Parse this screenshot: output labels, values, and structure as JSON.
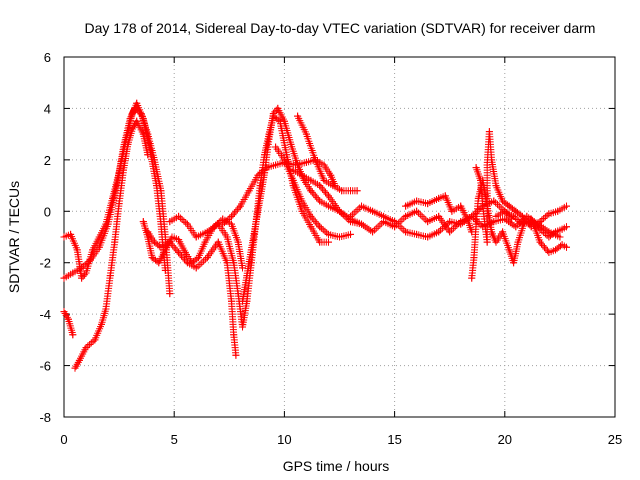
{
  "chart_data": {
    "type": "scatter",
    "title": "Day 178 of 2014, Sidereal Day-to-day VTEC variation (SDTVAR) for receiver darm",
    "xlabel": "GPS time / hours",
    "ylabel": "SDTVAR / TECUs",
    "xlim": [
      0,
      25
    ],
    "ylim": [
      -8,
      6
    ],
    "xticks": [
      0,
      5,
      10,
      15,
      20,
      25
    ],
    "yticks": [
      -8,
      -6,
      -4,
      -2,
      0,
      2,
      4,
      6
    ],
    "xtick_labels": [
      "0",
      "5",
      "10",
      "15",
      "20",
      "25"
    ],
    "ytick_labels": [
      "-8",
      "-6",
      "-4",
      "-2",
      "0",
      "2",
      "4",
      "6"
    ],
    "grid": true,
    "marker": "+",
    "series_color": "#ff0000",
    "series": [
      {
        "name": "track-1",
        "points": [
          [
            0,
            -1.0
          ],
          [
            0.3,
            -0.9
          ],
          [
            0.6,
            -1.5
          ],
          [
            0.8,
            -2.6
          ],
          [
            1.0,
            -2.4
          ],
          [
            1.3,
            -1.5
          ],
          [
            1.6,
            -1.0
          ],
          [
            1.9,
            -0.5
          ],
          [
            2.2,
            0.5
          ],
          [
            2.5,
            1.5
          ],
          [
            2.8,
            2.7
          ],
          [
            3.1,
            3.8
          ],
          [
            3.3,
            4.2
          ],
          [
            3.6,
            3.6
          ],
          [
            3.9,
            2.4
          ],
          [
            4.2,
            1.0
          ],
          [
            4.4,
            -0.5
          ],
          [
            4.5,
            -1.5
          ],
          [
            4.6,
            -2.3
          ]
        ]
      },
      {
        "name": "track-2",
        "points": [
          [
            0,
            -2.6
          ],
          [
            0.4,
            -2.4
          ],
          [
            0.8,
            -2.2
          ],
          [
            1.2,
            -1.9
          ],
          [
            1.6,
            -1.4
          ],
          [
            2.0,
            -0.5
          ],
          [
            2.4,
            1.0
          ],
          [
            2.7,
            2.5
          ],
          [
            3.0,
            3.6
          ],
          [
            3.2,
            4.0
          ],
          [
            3.5,
            3.8
          ],
          [
            3.8,
            3.0
          ],
          [
            4.1,
            2.0
          ],
          [
            4.4,
            0.8
          ],
          [
            4.6,
            -1.0
          ],
          [
            4.8,
            -3.2
          ]
        ]
      },
      {
        "name": "track-3",
        "points": [
          [
            0,
            -3.9
          ],
          [
            0.2,
            -4.2
          ],
          [
            0.4,
            -4.8
          ]
        ]
      },
      {
        "name": "track-4",
        "points": [
          [
            0.5,
            -6.1
          ],
          [
            0.7,
            -5.8
          ],
          [
            1.0,
            -5.3
          ],
          [
            1.4,
            -5.0
          ],
          [
            1.7,
            -4.4
          ],
          [
            1.9,
            -3.8
          ],
          [
            2.1,
            -2.5
          ],
          [
            2.3,
            -1.2
          ],
          [
            2.5,
            0.3
          ],
          [
            2.7,
            1.6
          ],
          [
            2.9,
            2.6
          ],
          [
            3.1,
            3.2
          ],
          [
            3.3,
            3.5
          ],
          [
            3.6,
            3.0
          ],
          [
            3.8,
            2.2
          ]
        ]
      },
      {
        "name": "track-5",
        "points": [
          [
            3.6,
            -0.4
          ],
          [
            3.8,
            -1.0
          ],
          [
            4.0,
            -1.8
          ],
          [
            4.3,
            -2.0
          ],
          [
            4.6,
            -1.5
          ],
          [
            4.9,
            -1.0
          ],
          [
            5.2,
            -1.1
          ],
          [
            5.5,
            -1.6
          ],
          [
            5.8,
            -2.0
          ],
          [
            6.1,
            -1.8
          ],
          [
            6.4,
            -1.2
          ],
          [
            6.8,
            -0.6
          ],
          [
            7.2,
            -0.3
          ],
          [
            7.6,
            -0.5
          ],
          [
            7.9,
            -1.2
          ],
          [
            8.1,
            -2.2
          ]
        ]
      },
      {
        "name": "track-6",
        "points": [
          [
            3.8,
            -0.8
          ],
          [
            4.1,
            -1.2
          ],
          [
            4.4,
            -1.4
          ],
          [
            4.8,
            -1.2
          ],
          [
            5.2,
            -1.6
          ],
          [
            5.6,
            -2.0
          ],
          [
            6.0,
            -2.2
          ],
          [
            6.5,
            -1.8
          ],
          [
            7.0,
            -1.2
          ],
          [
            7.4,
            -2.0
          ],
          [
            7.6,
            -3.5
          ],
          [
            7.7,
            -4.8
          ],
          [
            7.8,
            -5.6
          ]
        ]
      },
      {
        "name": "track-7",
        "points": [
          [
            4.8,
            -0.4
          ],
          [
            5.2,
            -0.2
          ],
          [
            5.6,
            -0.5
          ],
          [
            6.0,
            -1.0
          ],
          [
            6.5,
            -0.8
          ],
          [
            7.0,
            -0.5
          ],
          [
            7.4,
            -1.0
          ],
          [
            7.7,
            -2.0
          ],
          [
            7.9,
            -3.2
          ],
          [
            8.1,
            -4.5
          ],
          [
            8.3,
            -3.5
          ],
          [
            8.5,
            -2.0
          ],
          [
            8.7,
            -0.5
          ],
          [
            8.9,
            1.0
          ],
          [
            9.1,
            2.2
          ],
          [
            9.3,
            3.0
          ],
          [
            9.5,
            3.7
          ],
          [
            9.8,
            3.5
          ],
          [
            10.1,
            2.2
          ],
          [
            10.4,
            1.0
          ],
          [
            10.8,
            0
          ],
          [
            11.2,
            -0.6
          ],
          [
            11.6,
            -1.2
          ],
          [
            12.0,
            -1.2
          ]
        ]
      },
      {
        "name": "track-8",
        "points": [
          [
            7.2,
            -0.5
          ],
          [
            7.6,
            -0.2
          ],
          [
            8.0,
            0.2
          ],
          [
            8.4,
            0.8
          ],
          [
            8.8,
            1.4
          ],
          [
            9.2,
            1.7
          ],
          [
            9.6,
            1.8
          ],
          [
            10.0,
            1.9
          ],
          [
            10.5,
            1.8
          ],
          [
            11.0,
            1.9
          ],
          [
            11.4,
            2.0
          ],
          [
            11.8,
            1.8
          ],
          [
            12.1,
            1.4
          ],
          [
            12.3,
            1.0
          ]
        ]
      },
      {
        "name": "track-9",
        "points": [
          [
            8.1,
            -3.5
          ],
          [
            8.3,
            -2.5
          ],
          [
            8.5,
            -1.5
          ],
          [
            8.7,
            -0.5
          ],
          [
            8.9,
            0.5
          ],
          [
            9.1,
            1.5
          ],
          [
            9.3,
            2.8
          ],
          [
            9.5,
            3.8
          ],
          [
            9.7,
            4.0
          ],
          [
            10.0,
            3.5
          ],
          [
            10.3,
            2.6
          ],
          [
            10.6,
            1.8
          ],
          [
            10.9,
            1.2
          ],
          [
            11.2,
            0.8
          ],
          [
            11.6,
            0.4
          ],
          [
            12.0,
            0.2
          ],
          [
            12.5,
            0
          ],
          [
            13.0,
            -0.4
          ],
          [
            13.5,
            -0.5
          ]
        ]
      },
      {
        "name": "track-10",
        "points": [
          [
            9.6,
            2.5
          ],
          [
            10.0,
            2.0
          ],
          [
            10.4,
            1.2
          ],
          [
            10.8,
            0.4
          ],
          [
            11.2,
            -0.2
          ],
          [
            11.6,
            -0.6
          ],
          [
            12.0,
            -0.9
          ],
          [
            12.5,
            -1.0
          ],
          [
            13.0,
            -0.9
          ]
        ]
      },
      {
        "name": "track-11",
        "points": [
          [
            10.4,
            1.6
          ],
          [
            10.8,
            1.4
          ],
          [
            11.2,
            1.2
          ],
          [
            11.6,
            1.0
          ],
          [
            12.0,
            0.6
          ],
          [
            12.5,
            0
          ],
          [
            13.0,
            -0.3
          ],
          [
            13.5,
            -0.5
          ],
          [
            14.0,
            -0.8
          ],
          [
            14.5,
            -0.4
          ],
          [
            15.0,
            -0.6
          ],
          [
            15.5,
            -0.2
          ],
          [
            16.0,
            0
          ],
          [
            16.5,
            -0.4
          ],
          [
            17.0,
            -0.2
          ],
          [
            17.5,
            -0.8
          ],
          [
            18.0,
            -0.4
          ],
          [
            18.5,
            -0.2
          ],
          [
            19.0,
            -0.6
          ],
          [
            19.5,
            -0.4
          ],
          [
            20.0,
            -0.3
          ],
          [
            20.5,
            -0.6
          ],
          [
            21.0,
            -0.2
          ],
          [
            21.5,
            -0.5
          ],
          [
            22.0,
            -0.8
          ],
          [
            22.5,
            -1.0
          ]
        ]
      },
      {
        "name": "track-12",
        "points": [
          [
            10.6,
            3.7
          ],
          [
            11.0,
            3.0
          ],
          [
            11.4,
            2.0
          ],
          [
            11.8,
            1.2
          ],
          [
            12.2,
            1.0
          ],
          [
            12.6,
            0.8
          ],
          [
            13.0,
            0.8
          ],
          [
            13.3,
            0.8
          ]
        ]
      },
      {
        "name": "track-13",
        "points": [
          [
            13.0,
            -0.2
          ],
          [
            13.5,
            0.2
          ],
          [
            14.0,
            0
          ],
          [
            14.5,
            -0.2
          ],
          [
            15.0,
            -0.4
          ],
          [
            15.5,
            -0.8
          ],
          [
            16.0,
            -0.9
          ],
          [
            16.5,
            -1.0
          ],
          [
            17.0,
            -0.8
          ],
          [
            17.5,
            -0.4
          ],
          [
            18.0,
            -0.5
          ],
          [
            18.5,
            -0.2
          ],
          [
            19.0,
            0.2
          ],
          [
            19.5,
            0.4
          ],
          [
            20.0,
            0
          ],
          [
            20.3,
            -0.3
          ]
        ]
      },
      {
        "name": "track-14",
        "points": [
          [
            15.5,
            0.2
          ],
          [
            16.0,
            0.4
          ],
          [
            16.5,
            0.3
          ],
          [
            17.0,
            0.5
          ],
          [
            17.3,
            0.6
          ],
          [
            17.6,
            0
          ],
          [
            18.0,
            0.2
          ],
          [
            18.3,
            -0.3
          ],
          [
            18.5,
            -0.8
          ]
        ]
      },
      {
        "name": "track-15",
        "points": [
          [
            18.5,
            -2.6
          ],
          [
            18.6,
            -1.8
          ],
          [
            18.7,
            -0.5
          ],
          [
            18.8,
            0.5
          ],
          [
            19.0,
            1.2
          ],
          [
            19.2,
            0.2
          ],
          [
            19.4,
            -0.8
          ],
          [
            19.6,
            -1.2
          ],
          [
            19.9,
            -0.8
          ],
          [
            20.2,
            -1.5
          ],
          [
            20.4,
            -2.0
          ],
          [
            20.6,
            -1.2
          ],
          [
            20.9,
            -0.4
          ],
          [
            21.3,
            -0.5
          ],
          [
            21.6,
            -1.2
          ],
          [
            22.0,
            -1.6
          ],
          [
            22.3,
            -1.5
          ],
          [
            22.6,
            -1.3
          ],
          [
            22.8,
            -1.4
          ]
        ]
      },
      {
        "name": "track-16",
        "points": [
          [
            18.7,
            1.7
          ],
          [
            18.9,
            1.2
          ],
          [
            19.0,
            0.2
          ],
          [
            19.1,
            -0.5
          ],
          [
            19.2,
            -1.2
          ],
          [
            19.2,
            -0.5
          ],
          [
            19.2,
            0.6
          ],
          [
            19.2,
            1.8
          ],
          [
            19.3,
            3.1
          ],
          [
            19.4,
            2.0
          ],
          [
            19.6,
            1.0
          ],
          [
            19.9,
            0.4
          ],
          [
            20.2,
            0.2
          ],
          [
            20.5,
            0
          ],
          [
            20.8,
            -0.2
          ],
          [
            21.2,
            -0.6
          ],
          [
            21.6,
            -0.4
          ],
          [
            22.0,
            -0.1
          ],
          [
            22.4,
            0
          ],
          [
            22.8,
            0.2
          ]
        ]
      },
      {
        "name": "track-17",
        "points": [
          [
            19.6,
            -0.2
          ],
          [
            20.0,
            0
          ],
          [
            20.4,
            -0.2
          ],
          [
            20.8,
            -0.5
          ],
          [
            21.2,
            -0.3
          ],
          [
            21.6,
            -0.7
          ],
          [
            22.0,
            -1.0
          ],
          [
            22.3,
            -0.8
          ],
          [
            22.6,
            -0.7
          ],
          [
            22.8,
            -0.6
          ]
        ]
      }
    ]
  }
}
